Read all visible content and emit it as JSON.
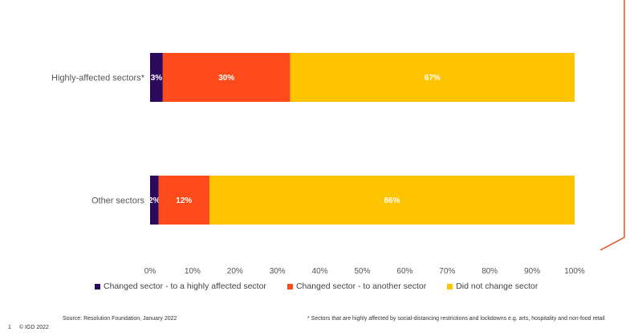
{
  "chart_data": {
    "type": "bar",
    "orientation": "horizontal",
    "stacked": true,
    "categories": [
      "Highly-affected sectors*",
      "Other sectors"
    ],
    "series": [
      {
        "name": "Changed sector - to a highly affected sector",
        "values": [
          3,
          2
        ],
        "labels": [
          "3%",
          "2%"
        ],
        "color": "#2B0A5E"
      },
      {
        "name": "Changed sector - to another sector",
        "values": [
          30,
          12
        ],
        "labels": [
          "30%",
          "12%"
        ],
        "color": "#FF4A1C"
      },
      {
        "name": "Did not change sector",
        "values": [
          67,
          86
        ],
        "labels": [
          "67%",
          "86%"
        ],
        "color": "#FFC400"
      }
    ],
    "xlim": [
      0,
      100
    ],
    "xticks": [
      "0%",
      "10%",
      "20%",
      "30%",
      "40%",
      "50%",
      "60%",
      "70%",
      "80%",
      "90%",
      "100%"
    ],
    "grid": false,
    "legend_position": "bottom"
  },
  "source": "Source: Resolution Foundation, January 2022",
  "footnote": "* Sectors that are highly affected by social-distancing restrictions and lockdowns e.g. arts, hospitality and non-food retail",
  "page_number": "1",
  "copyright": "© IGD 2022",
  "accent_color": "#E8542C"
}
